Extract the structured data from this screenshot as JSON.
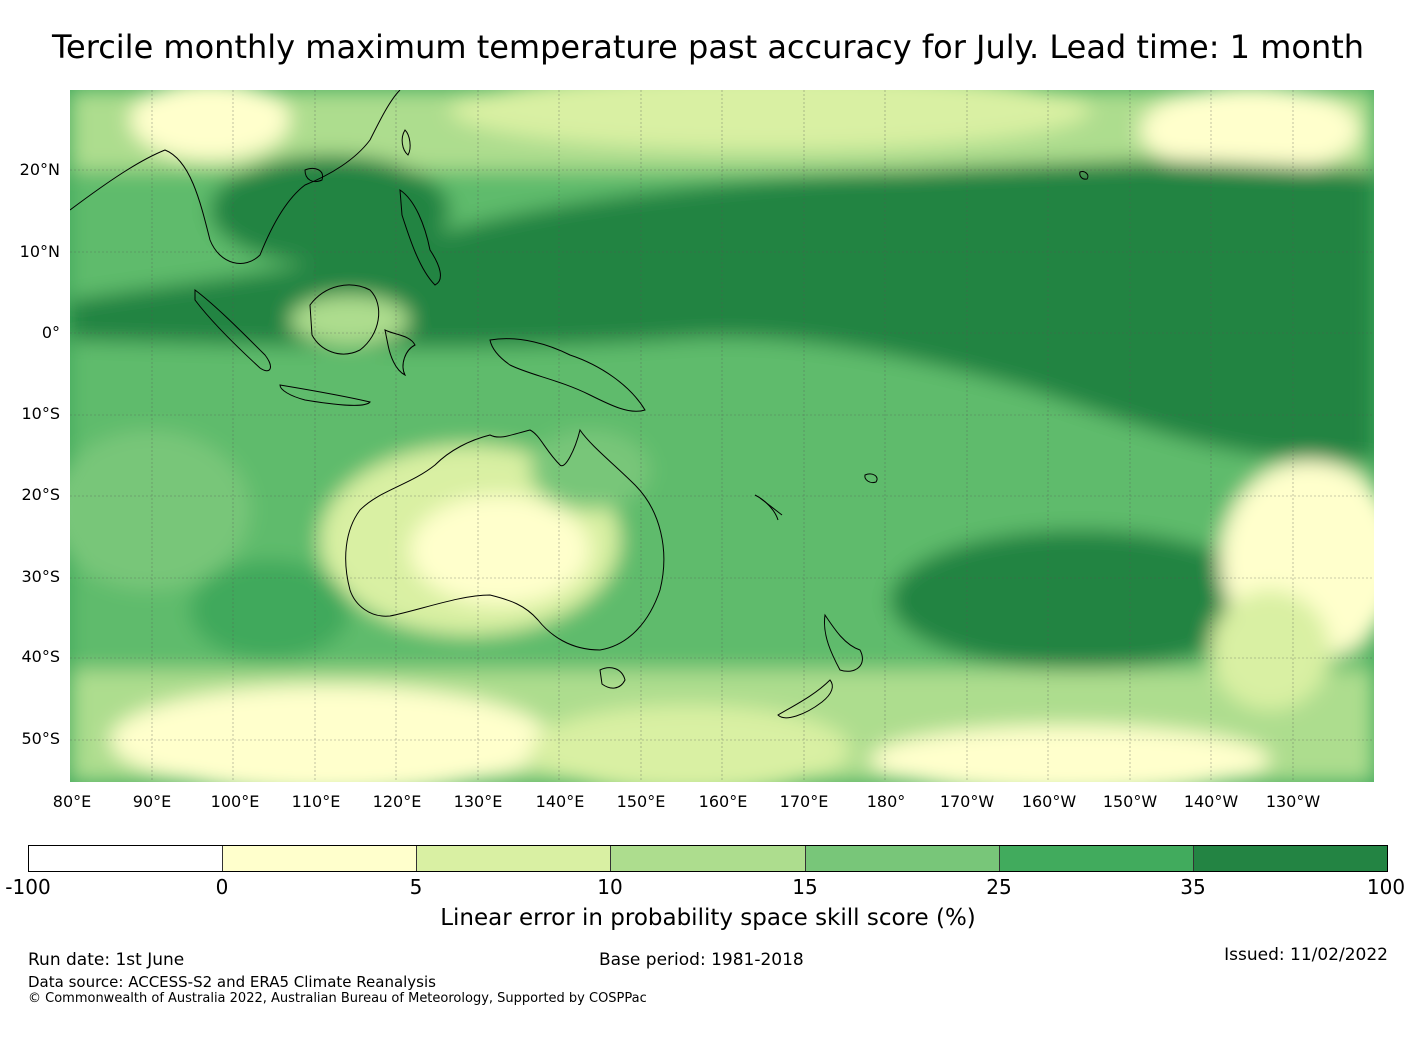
{
  "title": "Tercile monthly maximum temperature past accuracy for July. Lead time: 1 month",
  "map": {
    "latitude_labels": [
      "20°N",
      "10°N",
      "0°",
      "10°S",
      "20°S",
      "30°S",
      "40°S",
      "50°S"
    ],
    "longitude_labels": [
      "80°E",
      "90°E",
      "100°E",
      "110°E",
      "120°E",
      "130°E",
      "140°E",
      "150°E",
      "160°E",
      "170°E",
      "180°",
      "170°W",
      "160°W",
      "150°W",
      "140°W",
      "130°W"
    ]
  },
  "colorbar": {
    "ticks": [
      "-100",
      "0",
      "5",
      "10",
      "15",
      "25",
      "35",
      "100"
    ],
    "colors": [
      "#ffffff",
      "#ffffcc",
      "#d9f0a3",
      "#addd8e",
      "#78c679",
      "#41ab5d",
      "#238443"
    ],
    "label": "Linear error in probability space skill score (%)"
  },
  "footer": {
    "run_date": "Run date: 1st June",
    "base_period": "Base period: 1981-2018",
    "issued": "Issued: 11/02/2022",
    "data_source": "Data source: ACCESS-S2 and ERA5 Climate Reanalysis",
    "copyright": "© Commonwealth of Australia 2022, Australian Bureau of Meteorology, Supported by COSPPac"
  }
}
